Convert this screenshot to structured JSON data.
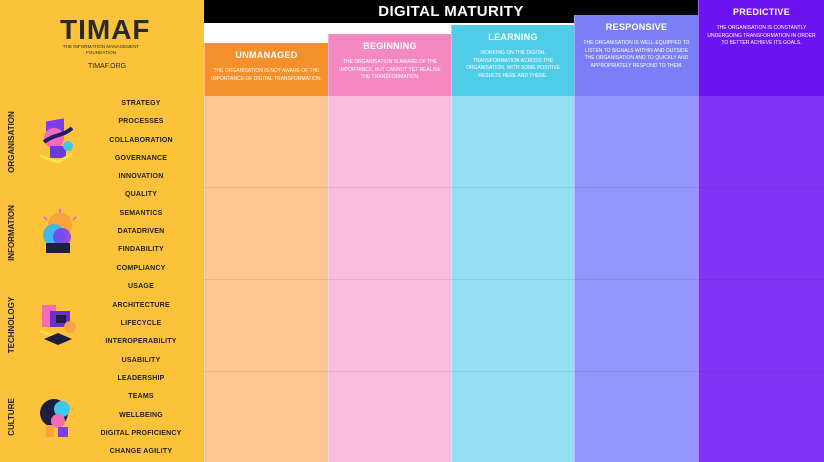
{
  "logo": {
    "name": "TIMAF",
    "subtitle": "THE INFORMATION MANAGEMENT FOUNDATION",
    "url": "TIMAF.ORG"
  },
  "title": "DIGITAL MATURITY",
  "levels": [
    {
      "name": "UNMANAGED",
      "description": "THE ORGANISATION IS NOT AWARE OF THE IMPORTANCE OF DIGITAL TRANSFORMATION.",
      "header_color": "#f6902a",
      "cell_color": "#fcc691",
      "text_color": "#ffffff"
    },
    {
      "name": "BEGINNING",
      "description": "THE ORGANISATION IS AWARE OF THE IMPORTANCE, BUT CANNOT YET REALISE THE TRANSFORMATION.",
      "header_color": "#f489c1",
      "cell_color": "#fbbbdd",
      "text_color": "#ffffff"
    },
    {
      "name": "LEARNING",
      "description": "WORKING ON THE DIGITAL TRANSFORMATION ACROSS THE ORGANISATION, WITH SOME POSITIVE RESULTS HERE AND THERE.",
      "header_color": "#4fcde8",
      "cell_color": "#93e0f3",
      "text_color": "#ffffff"
    },
    {
      "name": "RESPONSIVE",
      "description": "THE ORGANISATION IS WELL-EQUIPPED TO LISTEN TO SIGNALS WITHIN AND OUTSIDE THE ORGANISATION AND TO QUICKLY AND APPROPRIATELY RESPOND TO THEM.",
      "header_color": "#7a7ff5",
      "cell_color": "#9096fb",
      "text_color": "#ffffff"
    },
    {
      "name": "PREDICTIVE",
      "description": "THE ORGANISATION IS CONSTANTLY UNDERGOING TRANSFORMATION IN ORDER TO BETTER ACHIEVE ITS GOALS.",
      "header_color": "#6d12f1",
      "cell_color": "#8333f6",
      "text_color": "#ffffff"
    }
  ],
  "dimensions": [
    {
      "name": "ORGANISATION",
      "icon": "organisation-icon",
      "topics": [
        "STRATEGY",
        "PROCESSES",
        "COLLABORATION",
        "GOVERNANCE",
        "INNOVATION"
      ]
    },
    {
      "name": "INFORMATION",
      "icon": "information-icon",
      "topics": [
        "QUALITY",
        "SEMANTICS",
        "DATADRIVEN",
        "FINDABILITY",
        "COMPLIANCY"
      ]
    },
    {
      "name": "TECHNOLOGY",
      "icon": "technology-icon",
      "topics": [
        "USAGE",
        "ARCHITECTURE",
        "LIFECYCLE",
        "INTEROPERABILITY",
        "USABILITY"
      ]
    },
    {
      "name": "CULTURE",
      "icon": "culture-icon",
      "topics": [
        "LEADERSHIP",
        "TEAMS",
        "WELLBEING",
        "DIGITAL PROFICIENCY",
        "CHANGE AGILITY"
      ]
    }
  ],
  "colors": {
    "left_column": "#fcc33a",
    "title_bar": "#000000"
  }
}
